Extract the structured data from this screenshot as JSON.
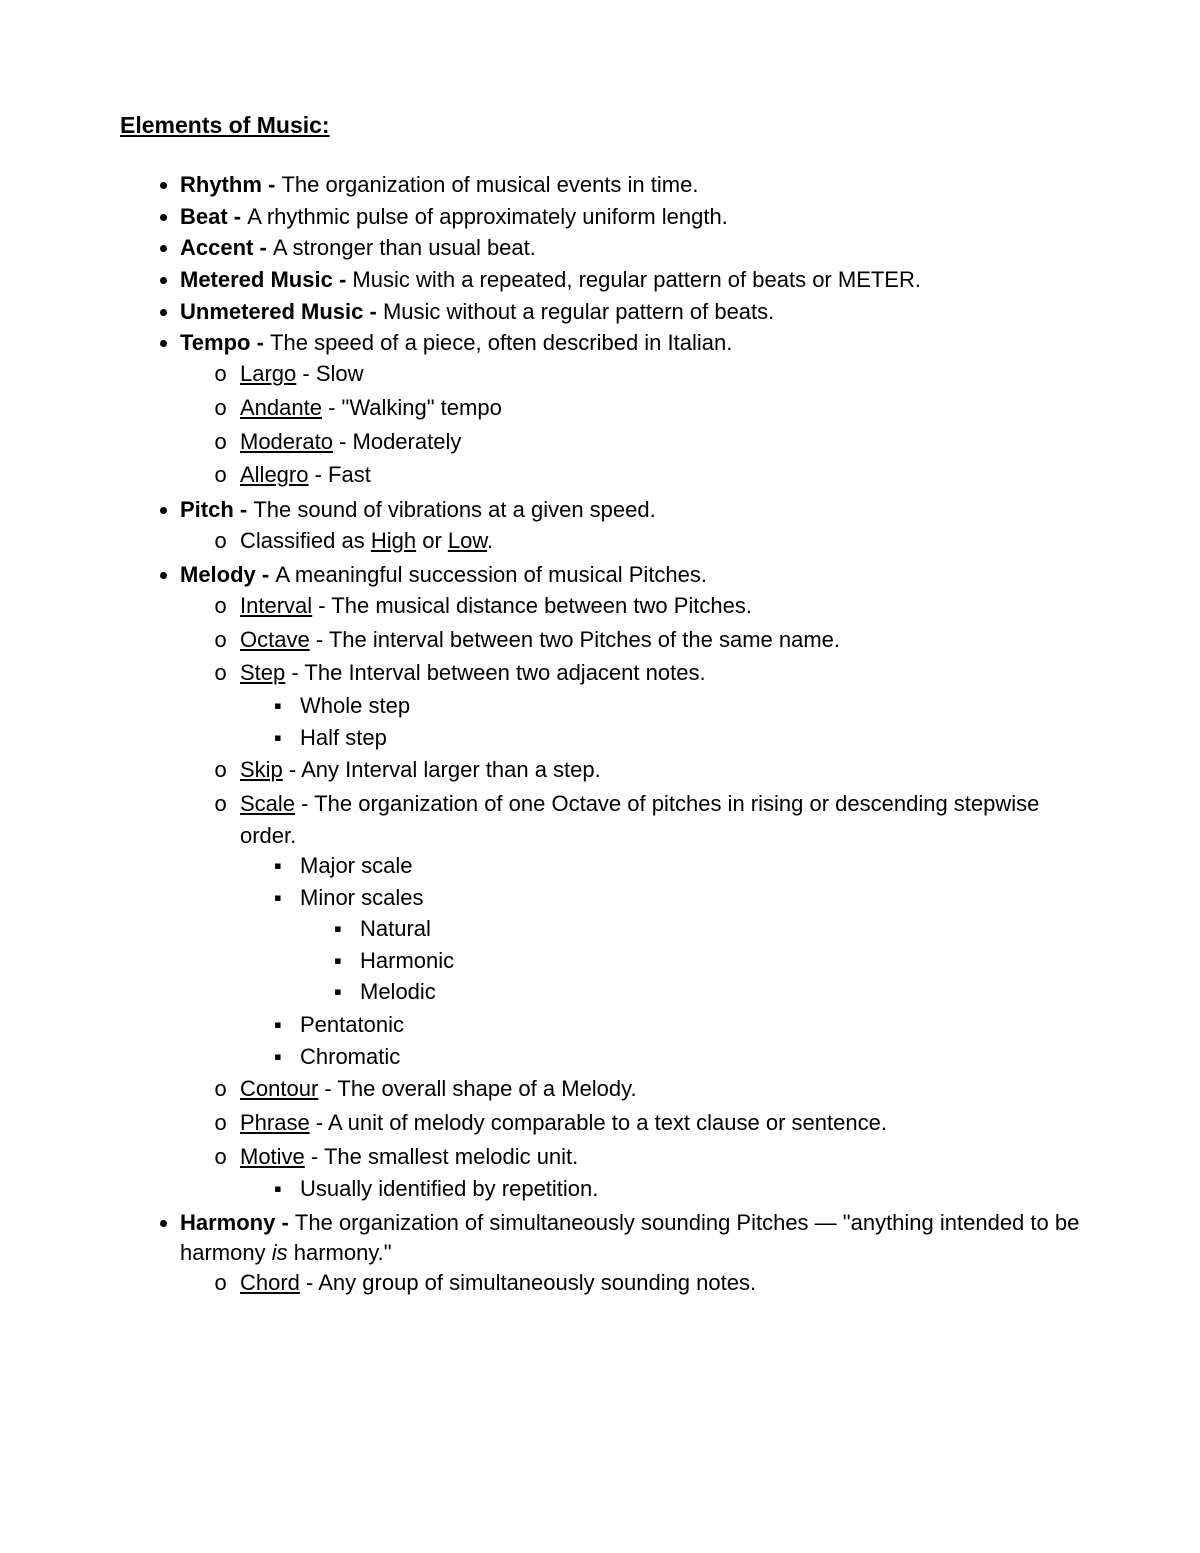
{
  "title": "Elements of Music:",
  "items": [
    {
      "term": "Rhythm",
      "def": "The organization of musical events in time."
    },
    {
      "term": "Beat",
      "def": "A rhythmic pulse of approximately uniform length."
    },
    {
      "term": "Accent",
      "def": "A stronger than usual beat."
    },
    {
      "term": "Metered Music",
      "def": "Music with a repeated, regular pattern of beats or METER."
    },
    {
      "term": "Unmetered Music",
      "def": "Music without a regular pattern of beats."
    },
    {
      "term": "Tempo",
      "def": "The speed of a piece, often described in Italian."
    },
    {
      "term": "Pitch",
      "def": "The sound of vibrations at a given speed."
    },
    {
      "term": "Melody",
      "def": "A meaningful succession of musical Pitches."
    },
    {
      "term": "Harmony",
      "defPre": "The organization of simultaneously sounding Pitches — \"anything intended to be harmony ",
      "defItalic": "is",
      "defPost": " harmony.\""
    }
  ],
  "tempo": [
    {
      "u": "Largo",
      "rest": " - Slow"
    },
    {
      "u": "Andante",
      "rest": " - \"Walking\" tempo"
    },
    {
      "u": "Moderato",
      "rest": " - Moderately"
    },
    {
      "u": "Allegro",
      "rest": " - Fast"
    }
  ],
  "pitchSub": {
    "pre": "Classified as ",
    "u1": "High",
    "mid": " or ",
    "u2": "Low",
    "post": "."
  },
  "melody": [
    {
      "u": "Interval",
      "rest": " - The musical distance between two Pitches."
    },
    {
      "u": "Octave",
      "rest": " - The interval between two Pitches of the same name."
    },
    {
      "u": "Step",
      "rest": " - The Interval between two adjacent notes."
    },
    {
      "u": "Skip",
      "rest": " - Any Interval larger than a step."
    },
    {
      "u": "Scale",
      "rest": " - The organization of one Octave of pitches in rising or descending stepwise order."
    },
    {
      "u": "Contour",
      "rest": " - The overall shape of a Melody."
    },
    {
      "u": "Phrase",
      "rest": " - A unit of melody comparable to a text clause or sentence."
    },
    {
      "u": "Motive",
      "rest": " - The smallest melodic unit."
    }
  ],
  "stepSub": [
    "Whole step",
    "Half step"
  ],
  "scaleSub": [
    "Major scale",
    "Minor scales",
    "Pentatonic",
    "Chromatic"
  ],
  "minorSub": [
    "Natural",
    "Harmonic",
    "Melodic"
  ],
  "motiveSub": [
    "Usually identified by repetition."
  ],
  "harmonySub": {
    "u": "Chord",
    "rest": " - Any group of simultaneously sounding notes."
  }
}
